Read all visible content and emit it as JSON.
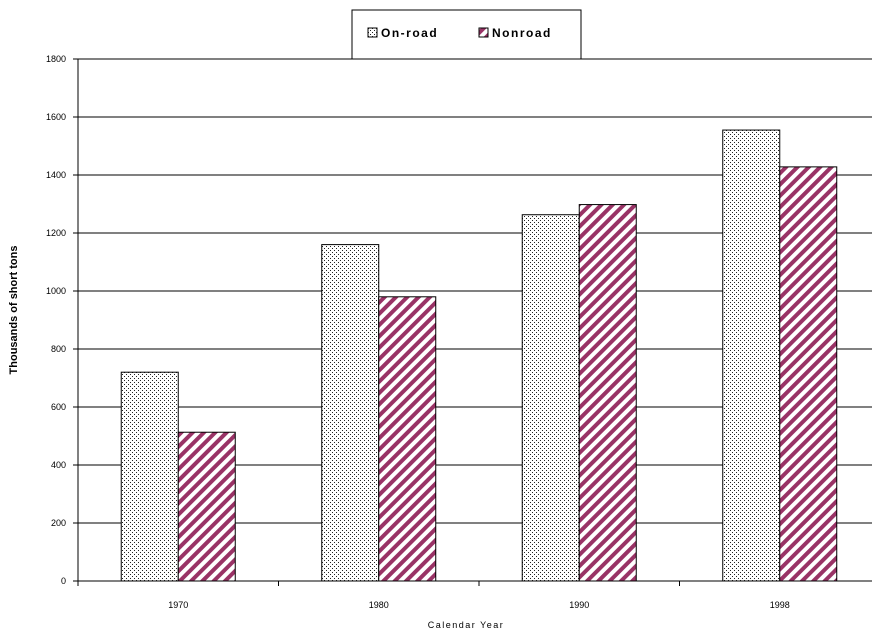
{
  "chart_data": {
    "type": "bar",
    "categories": [
      "1970",
      "1980",
      "1990",
      "1998"
    ],
    "series": [
      {
        "name": "On-road",
        "values": [
          720,
          1160,
          1263,
          1555
        ],
        "pattern": "dotted",
        "color": "#ffffff"
      },
      {
        "name": "Nonroad",
        "values": [
          513,
          980,
          1298,
          1428
        ],
        "pattern": "diagonal-stripes",
        "color": "#993366"
      }
    ],
    "xlabel": "Calendar Year",
    "ylabel": "Thousands of short tons",
    "ylim": [
      0,
      1800
    ],
    "yticks": [
      "0",
      "200",
      "400",
      "600",
      "800",
      "1000",
      "1200",
      "1400",
      "1600",
      "1800"
    ],
    "grid": true,
    "legend_position": "top-center"
  }
}
